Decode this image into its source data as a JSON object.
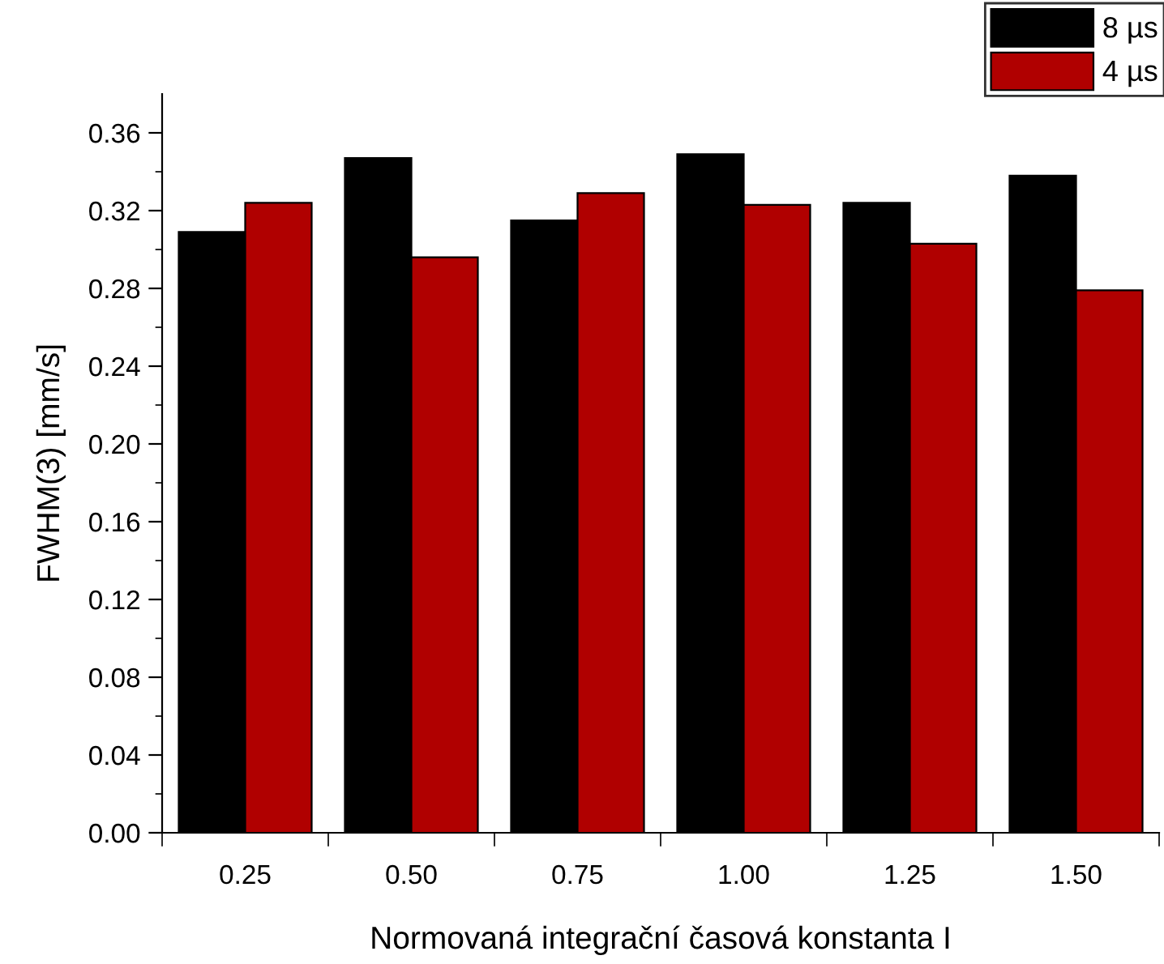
{
  "chart_data": {
    "type": "bar",
    "xlabel": "Normovaná integrační časová konstanta I",
    "ylabel": "FWHM(3) [mm/s]",
    "categories": [
      "0.25",
      "0.50",
      "0.75",
      "1.00",
      "1.25",
      "1.50"
    ],
    "series": [
      {
        "name": "8 µs",
        "color": "#000000",
        "values": [
          0.309,
          0.347,
          0.315,
          0.349,
          0.324,
          0.338
        ]
      },
      {
        "name": "4 µs",
        "color": "#b00000",
        "values": [
          0.324,
          0.296,
          0.329,
          0.323,
          0.303,
          0.279
        ]
      }
    ],
    "ylim": [
      0,
      0.38
    ],
    "yticks": [
      {
        "value": 0,
        "label": "0.00"
      },
      {
        "value": 0.04,
        "label": "0.04"
      },
      {
        "value": 0.08,
        "label": "0.08"
      },
      {
        "value": 0.12,
        "label": "0.12"
      },
      {
        "value": 0.16,
        "label": "0.16"
      },
      {
        "value": 0.2,
        "label": "0.20"
      },
      {
        "value": 0.24,
        "label": "0.24"
      },
      {
        "value": 0.28,
        "label": "0.28"
      },
      {
        "value": 0.32,
        "label": "0.32"
      },
      {
        "value": 0.36,
        "label": "0.36"
      }
    ],
    "grid": false,
    "legend": "top right"
  }
}
